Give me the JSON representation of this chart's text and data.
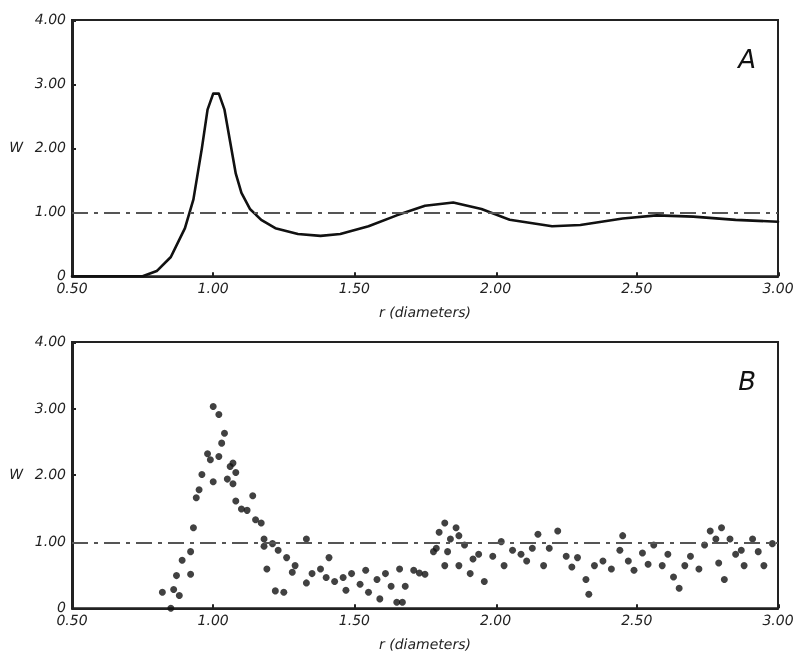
{
  "chart_data": [
    {
      "type": "line",
      "xlabel": "r (diameters)",
      "ylabel": "W",
      "annotations": [
        "A"
      ],
      "color": "#111111",
      "line_style": "solid",
      "marker": "none",
      "grid": false,
      "x": [
        0.5,
        0.75,
        0.8,
        0.85,
        0.9,
        0.93,
        0.96,
        0.98,
        1.0,
        1.02,
        1.04,
        1.06,
        1.08,
        1.1,
        1.13,
        1.17,
        1.22,
        1.3,
        1.38,
        1.45,
        1.55,
        1.65,
        1.75,
        1.85,
        1.95,
        2.05,
        2.2,
        2.3,
        2.45,
        2.57,
        2.7,
        2.85,
        3.0
      ],
      "values": [
        0,
        0,
        0.08,
        0.3,
        0.75,
        1.2,
        2.0,
        2.6,
        2.85,
        2.85,
        2.6,
        2.1,
        1.6,
        1.3,
        1.05,
        0.88,
        0.75,
        0.66,
        0.63,
        0.66,
        0.78,
        0.95,
        1.1,
        1.15,
        1.05,
        0.88,
        0.78,
        0.8,
        0.9,
        0.95,
        0.93,
        0.88,
        0.85
      ],
      "xlim": [
        0.5,
        3.0
      ],
      "xticks": [
        {
          "value": 0.5,
          "label": "0.50"
        },
        {
          "value": 1,
          "label": "1.00"
        },
        {
          "value": 1.5,
          "label": "1.50"
        },
        {
          "value": 2,
          "label": "2.00"
        },
        {
          "value": 2.5,
          "label": "2.50"
        },
        {
          "value": 3,
          "label": "3.00"
        }
      ],
      "ylim": [
        0,
        4
      ],
      "yticks": [
        0,
        {
          "value": 1,
          "label": "1.00"
        },
        {
          "value": 2,
          "label": "2.00"
        },
        {
          "value": 3,
          "label": "3.00"
        },
        {
          "value": 4,
          "label": "4.00"
        }
      ],
      "ref_lines": [
        {
          "axis": "y",
          "value": 1,
          "line_style": "dashed"
        }
      ]
    },
    {
      "type": "scatter",
      "xlabel": "r (diameters)",
      "ylabel": "W",
      "annotations": [
        "B"
      ],
      "color": "#111111",
      "marker": "circle",
      "grid": false,
      "x": [
        0.82,
        0.86,
        0.88,
        0.85,
        0.87,
        0.89,
        0.92,
        0.93,
        0.92,
        0.94,
        0.95,
        0.96,
        0.98,
        0.99,
        1.0,
        1.02,
        1.02,
        1.03,
        1.04,
        1.06,
        1.07,
        1.08,
        1.07,
        1.05,
        1.0,
        1.08,
        1.1,
        1.12,
        1.14,
        1.15,
        1.17,
        1.18,
        1.18,
        1.19,
        1.21,
        1.23,
        1.22,
        1.25,
        1.26,
        1.28,
        1.29,
        1.33,
        1.33,
        1.35,
        1.38,
        1.4,
        1.41,
        1.43,
        1.46,
        1.47,
        1.49,
        1.52,
        1.54,
        1.55,
        1.58,
        1.59,
        1.61,
        1.63,
        1.65,
        1.66,
        1.67,
        1.68,
        1.71,
        1.73,
        1.75,
        1.78,
        1.79,
        1.8,
        1.82,
        1.84,
        1.83,
        1.82,
        1.86,
        1.87,
        1.89,
        1.87,
        1.91,
        1.92,
        1.94,
        1.96,
        1.99,
        2.02,
        2.03,
        2.06,
        2.09,
        2.11,
        2.13,
        2.15,
        2.17,
        2.19,
        2.22,
        2.25,
        2.27,
        2.29,
        2.32,
        2.33,
        2.35,
        2.38,
        2.41,
        2.44,
        2.45,
        2.47,
        2.49,
        2.52,
        2.54,
        2.56,
        2.59,
        2.61,
        2.63,
        2.65,
        2.67,
        2.69,
        2.72,
        2.74,
        2.76,
        2.78,
        2.79,
        2.8,
        2.81,
        2.83,
        2.85,
        2.87,
        2.88,
        2.91,
        2.93,
        2.95,
        2.98
      ],
      "values": [
        0.24,
        0.28,
        0.19,
        0,
        0.49,
        0.72,
        0.85,
        1.21,
        0.51,
        1.66,
        1.78,
        2.01,
        2.32,
        2.23,
        3.03,
        2.91,
        2.28,
        2.48,
        2.63,
        2.13,
        2.18,
        2.04,
        1.87,
        1.94,
        1.9,
        1.61,
        1.49,
        1.47,
        1.69,
        1.33,
        1.28,
        1.04,
        0.93,
        0.59,
        0.97,
        0.87,
        0.26,
        0.24,
        0.76,
        0.54,
        0.64,
        1.04,
        0.38,
        0.52,
        0.59,
        0.46,
        0.76,
        0.4,
        0.46,
        0.27,
        0.52,
        0.36,
        0.57,
        0.24,
        0.43,
        0.14,
        0.52,
        0.33,
        0.09,
        0.59,
        0.09,
        0.33,
        0.57,
        0.53,
        0.51,
        0.85,
        0.9,
        1.14,
        1.28,
        1.04,
        0.85,
        0.64,
        1.21,
        1.09,
        0.95,
        0.64,
        0.52,
        0.74,
        0.81,
        0.4,
        0.78,
        1.0,
        0.64,
        0.87,
        0.81,
        0.71,
        0.9,
        1.11,
        0.64,
        0.9,
        1.16,
        0.78,
        0.62,
        0.76,
        0.43,
        0.21,
        0.64,
        0.71,
        0.59,
        0.87,
        1.09,
        0.71,
        0.57,
        0.83,
        0.66,
        0.95,
        0.64,
        0.81,
        0.47,
        0.3,
        0.64,
        0.78,
        0.59,
        0.95,
        1.16,
        1.04,
        0.68,
        1.21,
        0.43,
        1.04,
        0.81,
        0.87,
        0.64,
        1.04,
        0.85,
        0.64,
        0.97
      ],
      "xlim": [
        0.5,
        3.0
      ],
      "xticks": [
        {
          "value": 0.5,
          "label": "0.50"
        },
        {
          "value": 1,
          "label": "1.00"
        },
        {
          "value": 1.5,
          "label": "1.50"
        },
        {
          "value": 2,
          "label": "2.00"
        },
        {
          "value": 2.5,
          "label": "2.50"
        },
        {
          "value": 3,
          "label": "3.00"
        }
      ],
      "ylim": [
        0,
        4
      ],
      "yticks": [
        0,
        {
          "value": 1,
          "label": "1.00"
        },
        {
          "value": 2,
          "label": "2.00"
        },
        {
          "value": 3,
          "label": "3.00"
        },
        {
          "value": 4,
          "label": "4.00"
        }
      ],
      "ref_lines": [
        {
          "axis": "y",
          "value": 1,
          "line_style": "dashed"
        }
      ]
    }
  ]
}
